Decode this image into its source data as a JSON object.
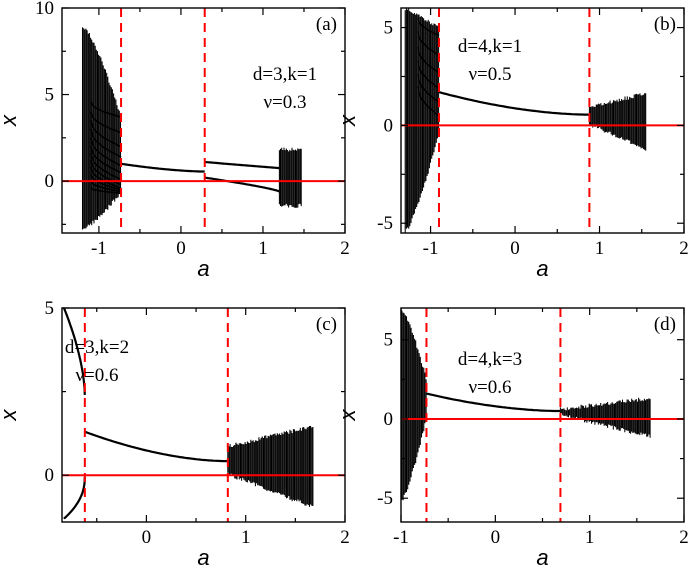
{
  "chart_data": [
    {
      "type": "scatter",
      "panel": "(a)",
      "annotation": [
        "d=3,k=1",
        "ν=0.3"
      ],
      "xlabel": "a",
      "ylabel": "x",
      "xlim": [
        -1.45,
        2
      ],
      "ylim": [
        -3,
        10
      ],
      "xticks": [
        -1,
        0,
        1,
        2
      ],
      "yticks": [
        0,
        5,
        10
      ],
      "vlines": [
        -0.73,
        0.29
      ],
      "hline": 0,
      "colors": {
        "data": "#000000",
        "lines": "#ff0000"
      },
      "regions": [
        {
          "kind": "chaos",
          "x": [
            -1.2,
            -0.73
          ],
          "upper": [
            9.0,
            3.7
          ],
          "lower": [
            -2.8,
            -0.7
          ],
          "curve": 1.4
        },
        {
          "kind": "branches",
          "x": [
            -1.1,
            -0.73
          ],
          "start": [
            4.6,
            4.0,
            3.5,
            3.0,
            2.5,
            2.0,
            1.6,
            1.2,
            0.8,
            0.4,
            0.0,
            -0.4
          ],
          "end": [
            3.7,
            2.8,
            2.0,
            1.4,
            0.9,
            0.5,
            0.1,
            -0.2,
            -0.4,
            -0.5,
            -0.6,
            -0.7
          ]
        },
        {
          "kind": "line",
          "x": [
            -0.73,
            0.29
          ],
          "y": [
            1.0,
            0.55
          ],
          "curve": 1.6
        },
        {
          "kind": "line",
          "x": [
            0.29,
            1.2
          ],
          "y": [
            1.1,
            0.75
          ],
          "curve": 1.0
        },
        {
          "kind": "line",
          "x": [
            0.29,
            1.2
          ],
          "y": [
            0.2,
            -0.6
          ],
          "curve": 0.8
        },
        {
          "kind": "chaos",
          "x": [
            1.2,
            1.47
          ],
          "upper": [
            1.9,
            1.9
          ],
          "lower": [
            -1.5,
            -1.5
          ],
          "curve": 1.0
        }
      ]
    },
    {
      "type": "scatter",
      "panel": "(b)",
      "annotation": [
        "d=4,k=1",
        "ν=0.5"
      ],
      "xlabel": "a",
      "ylabel": "x",
      "xlim": [
        -1.35,
        2
      ],
      "ylim": [
        -5.5,
        6
      ],
      "xticks": [
        -1,
        0,
        1,
        2
      ],
      "yticks": [
        -5,
        0,
        5
      ],
      "vlines": [
        -0.9,
        0.88
      ],
      "hline": 0,
      "colors": {
        "data": "#000000",
        "lines": "#ff0000"
      },
      "regions": [
        {
          "kind": "chaos",
          "x": [
            -1.3,
            -0.9
          ],
          "upper": [
            6.0,
            5.0
          ],
          "lower": [
            -5.5,
            -0.5
          ],
          "curve": 1.3
        },
        {
          "kind": "branches",
          "x": [
            -1.15,
            -0.9
          ],
          "start": [
            5.5,
            4.8,
            4.0,
            3.3,
            2.6,
            2.0
          ],
          "end": [
            4.6,
            3.6,
            2.7,
            1.9,
            1.2,
            0.5
          ]
        },
        {
          "kind": "line",
          "x": [
            -0.9,
            0.88
          ],
          "y": [
            1.7,
            0.55
          ],
          "curve": 1.8
        },
        {
          "kind": "chaos",
          "x": [
            0.88,
            1.55
          ],
          "upper": [
            1.0,
            1.7
          ],
          "lower": [
            0.0,
            -1.3
          ],
          "curve": 1.0
        }
      ]
    },
    {
      "type": "scatter",
      "panel": "(c)",
      "annotation": [
        "d=3,k=2",
        "ν=0.6"
      ],
      "xlabel": "a",
      "ylabel": "x",
      "xlim": [
        -0.85,
        2
      ],
      "ylim": [
        -1.4,
        5
      ],
      "xticks": [
        0,
        1,
        2
      ],
      "yticks": [
        0,
        5
      ],
      "vlines": [
        -0.62,
        0.82
      ],
      "hline": 0,
      "colors": {
        "data": "#000000",
        "lines": "#ff0000"
      },
      "regions": [
        {
          "kind": "line",
          "x": [
            -0.83,
            -0.62
          ],
          "y": [
            5.0,
            2.4
          ],
          "curve": 0.6
        },
        {
          "kind": "line",
          "x": [
            -0.83,
            -0.62
          ],
          "y": [
            -1.3,
            -0.05
          ],
          "curve": 0.45
        },
        {
          "kind": "line",
          "x": [
            -0.62,
            0.82
          ],
          "y": [
            1.3,
            0.42
          ],
          "curve": 1.8
        },
        {
          "kind": "chaos",
          "x": [
            0.82,
            1.68
          ],
          "upper": [
            0.9,
            1.5
          ],
          "lower": [
            0.0,
            -1.0
          ],
          "curve": 1.0
        }
      ]
    },
    {
      "type": "scatter",
      "panel": "(d)",
      "annotation": [
        "d=4,k=3",
        "ν=0.6"
      ],
      "xlabel": "a",
      "ylabel": "x",
      "xlim": [
        -1.0,
        2
      ],
      "ylim": [
        -6.5,
        7
      ],
      "xticks": [
        -1,
        0,
        1,
        2
      ],
      "yticks": [
        -5,
        0,
        5
      ],
      "vlines": [
        -0.73,
        0.69
      ],
      "hline": 0,
      "colors": {
        "data": "#000000",
        "lines": "#ff0000"
      },
      "regions": [
        {
          "kind": "chaos",
          "x": [
            -0.99,
            -0.73
          ],
          "upper": [
            7.0,
            2.6
          ],
          "lower": [
            -5.2,
            0.0
          ],
          "curve": 1.3
        },
        {
          "kind": "line",
          "x": [
            -0.73,
            0.69
          ],
          "y": [
            1.6,
            0.5
          ],
          "curve": 1.8
        },
        {
          "kind": "chaos",
          "x": [
            0.69,
            1.65
          ],
          "upper": [
            0.7,
            1.4
          ],
          "lower": [
            0.2,
            -1.2
          ],
          "curve": 1.0
        }
      ]
    }
  ]
}
